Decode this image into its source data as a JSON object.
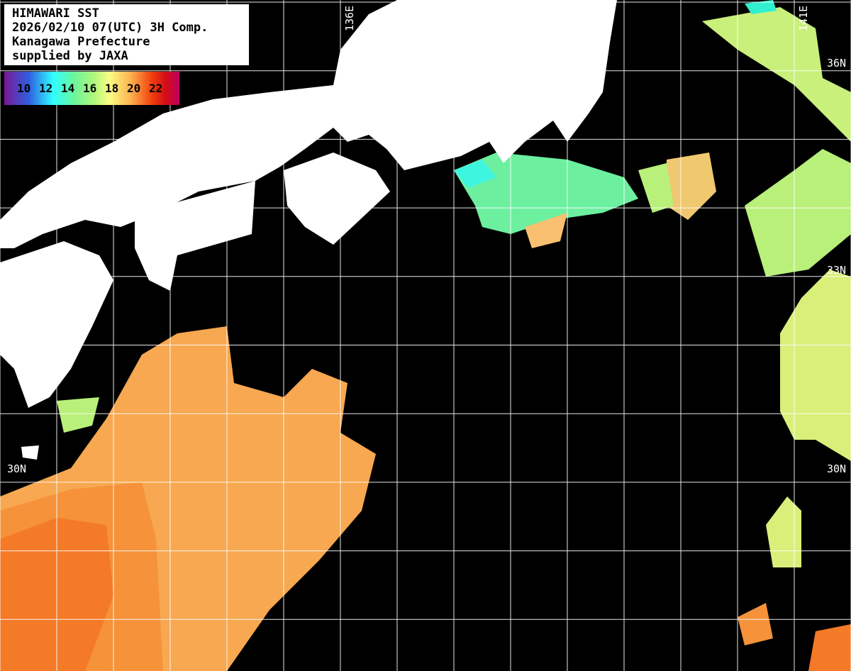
{
  "header": {
    "lines": [
      "HIMAWARI SST",
      "2026/02/10 07(UTC) 3H Comp.",
      "Kanagawa Prefecture",
      "supplied by JAXA"
    ]
  },
  "colorbar": {
    "ticks": [
      "10",
      "12",
      "14",
      "16",
      "18",
      "20",
      "22"
    ],
    "colors": [
      "#7a1896",
      "#2f5ee0",
      "#2fffff",
      "#6cf59a",
      "#b5f77a",
      "#fcfd85",
      "#fcb24f",
      "#f3420f",
      "#d30d14",
      "#c00060"
    ]
  },
  "grid_labels": {
    "lon_136": "136E",
    "lon_141": "141E",
    "lat_36": "36N",
    "lat_33": "33N",
    "lat_30": "30N"
  },
  "colors": {
    "land": "#ffffff",
    "no_data": "#000000",
    "grid": "#ffffff"
  }
}
